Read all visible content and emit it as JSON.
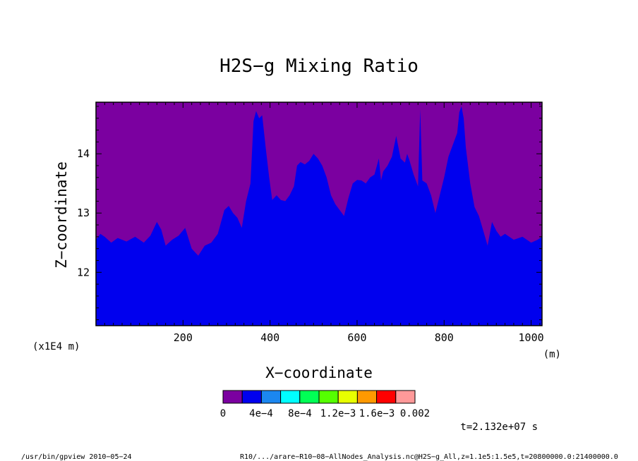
{
  "chart_data": {
    "type": "heatmap",
    "title": "H2S−g Mixing Ratio",
    "xlabel": "X−coordinate",
    "ylabel": "Z−coordinate",
    "x_unit": "(m)",
    "y_unit": "(x1E4 m)",
    "xlim": [
      0,
      1025
    ],
    "ylim": [
      11.1,
      14.87
    ],
    "x_ticks": [
      200,
      400,
      600,
      800,
      1000
    ],
    "x_tick_labels": [
      "200",
      "400",
      "600",
      "800",
      "1000"
    ],
    "y_ticks": [
      12,
      13,
      14
    ],
    "y_tick_labels": [
      "12",
      "13",
      "14"
    ],
    "fill_colors": {
      "low": "#0000ee",
      "high": "#7b00a0"
    },
    "boundary": {
      "x": [
        0,
        10,
        20,
        35,
        50,
        70,
        90,
        110,
        125,
        140,
        150,
        160,
        175,
        190,
        205,
        220,
        235,
        250,
        265,
        280,
        295,
        305,
        315,
        325,
        335,
        345,
        355,
        362,
        368,
        375,
        382,
        390,
        398,
        405,
        415,
        425,
        435,
        445,
        455,
        462,
        470,
        480,
        490,
        500,
        510,
        520,
        530,
        540,
        550,
        560,
        570,
        580,
        590,
        600,
        610,
        620,
        630,
        640,
        650,
        655,
        660,
        670,
        680,
        690,
        700,
        710,
        715,
        720,
        730,
        740,
        745,
        750,
        760,
        770,
        780,
        790,
        800,
        810,
        820,
        830,
        835,
        840,
        845,
        850,
        860,
        870,
        880,
        890,
        900,
        910,
        920,
        930,
        940,
        960,
        980,
        1000,
        1015,
        1025
      ],
      "y": [
        12.55,
        12.65,
        12.6,
        12.5,
        12.58,
        12.52,
        12.6,
        12.5,
        12.62,
        12.85,
        12.72,
        12.45,
        12.55,
        12.62,
        12.75,
        12.4,
        12.28,
        12.45,
        12.5,
        12.65,
        13.05,
        13.12,
        13.0,
        12.92,
        12.75,
        13.2,
        13.5,
        14.55,
        14.72,
        14.6,
        14.65,
        14.1,
        13.6,
        13.22,
        13.3,
        13.22,
        13.2,
        13.3,
        13.45,
        13.8,
        13.86,
        13.82,
        13.88,
        14.0,
        13.92,
        13.8,
        13.6,
        13.3,
        13.15,
        13.05,
        12.95,
        13.25,
        13.5,
        13.56,
        13.55,
        13.5,
        13.6,
        13.65,
        13.92,
        13.55,
        13.7,
        13.8,
        13.95,
        14.3,
        13.92,
        13.85,
        14.0,
        13.9,
        13.65,
        13.45,
        14.75,
        13.55,
        13.5,
        13.3,
        13.0,
        13.3,
        13.6,
        13.95,
        14.15,
        14.35,
        14.7,
        14.8,
        14.6,
        14.1,
        13.5,
        13.1,
        12.95,
        12.7,
        12.45,
        12.85,
        12.7,
        12.6,
        12.65,
        12.55,
        12.6,
        12.5,
        12.55,
        12.6
      ]
    },
    "colorbar": {
      "colors": [
        "#7b00a0",
        "#0000ee",
        "#1b87f0",
        "#00ffff",
        "#00ff55",
        "#55ff00",
        "#e8ff00",
        "#ff9900",
        "#ff0000",
        "#ff9999"
      ],
      "labels": [
        "0",
        "4e−4",
        "8e−4",
        "1.2e−3",
        "1.6e−3",
        "0.002"
      ]
    },
    "time_label": "t=2.132e+07 s"
  },
  "footer": {
    "left": "/usr/bin/gpview  2010−05−24",
    "right": "R10/.../arare−R10−08−AllNodes_Analysis.nc@H2S−g_All,z=1.1e5:1.5e5,t=20800000.0:21400000.0"
  }
}
